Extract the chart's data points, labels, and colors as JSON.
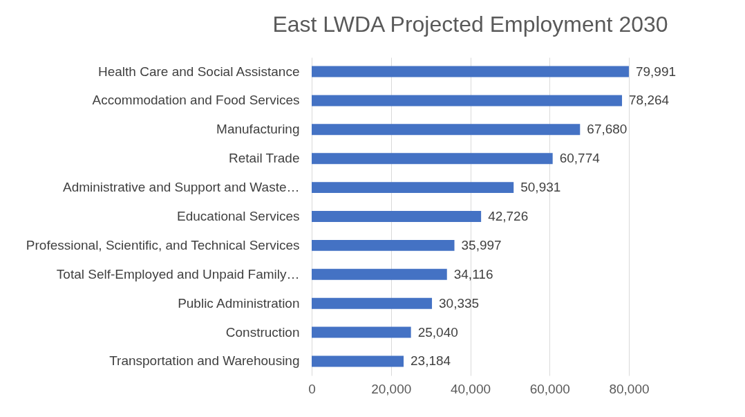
{
  "chart_data": {
    "type": "bar",
    "orientation": "horizontal",
    "title": "East LWDA Projected Employment 2030",
    "categories": [
      "Health Care and Social Assistance",
      "Accommodation and Food Services",
      "Manufacturing",
      "Retail Trade",
      "Administrative and Support and Waste…",
      "Educational Services",
      "Professional, Scientific, and Technical Services",
      "Total Self-Employed and Unpaid Family…",
      "Public Administration",
      "Construction",
      "Transportation and Warehousing"
    ],
    "values": [
      79991,
      78264,
      67680,
      60774,
      50931,
      42726,
      35997,
      34116,
      30335,
      25040,
      23184
    ],
    "value_labels": [
      "79,991",
      "78,264",
      "67,680",
      "60,774",
      "50,931",
      "42,726",
      "35,997",
      "34,116",
      "30,335",
      "25,040",
      "23,184"
    ],
    "color": "#4472c4",
    "xlim": [
      0,
      80000
    ],
    "xticks": [
      0,
      {
        "value": 20000,
        "label": "20,000"
      },
      {
        "value": 40000,
        "label": "40,000"
      },
      {
        "value": 60000,
        "label": "60,000"
      },
      {
        "value": 80000,
        "label": "80,000"
      }
    ],
    "grid": "x"
  }
}
